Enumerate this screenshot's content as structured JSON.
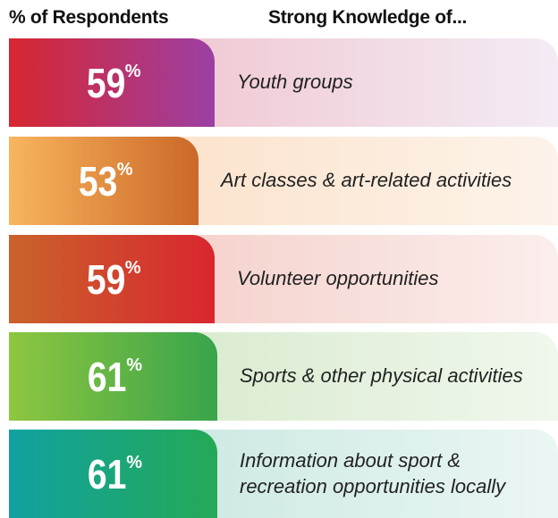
{
  "header": {
    "left": "% of Respondents",
    "right": "Strong Knowledge of..."
  },
  "rows": [
    {
      "value": 59,
      "unit": "%",
      "label": "Youth groups"
    },
    {
      "value": 53,
      "unit": "%",
      "label": "Art classes & art-related activities"
    },
    {
      "value": 59,
      "unit": "%",
      "label": "Volunteer opportunities"
    },
    {
      "value": 61,
      "unit": "%",
      "label": "Sports & other physical activities"
    },
    {
      "value": 61,
      "unit": "%",
      "label": "Information about sport & recreation opportunities locally"
    }
  ]
}
